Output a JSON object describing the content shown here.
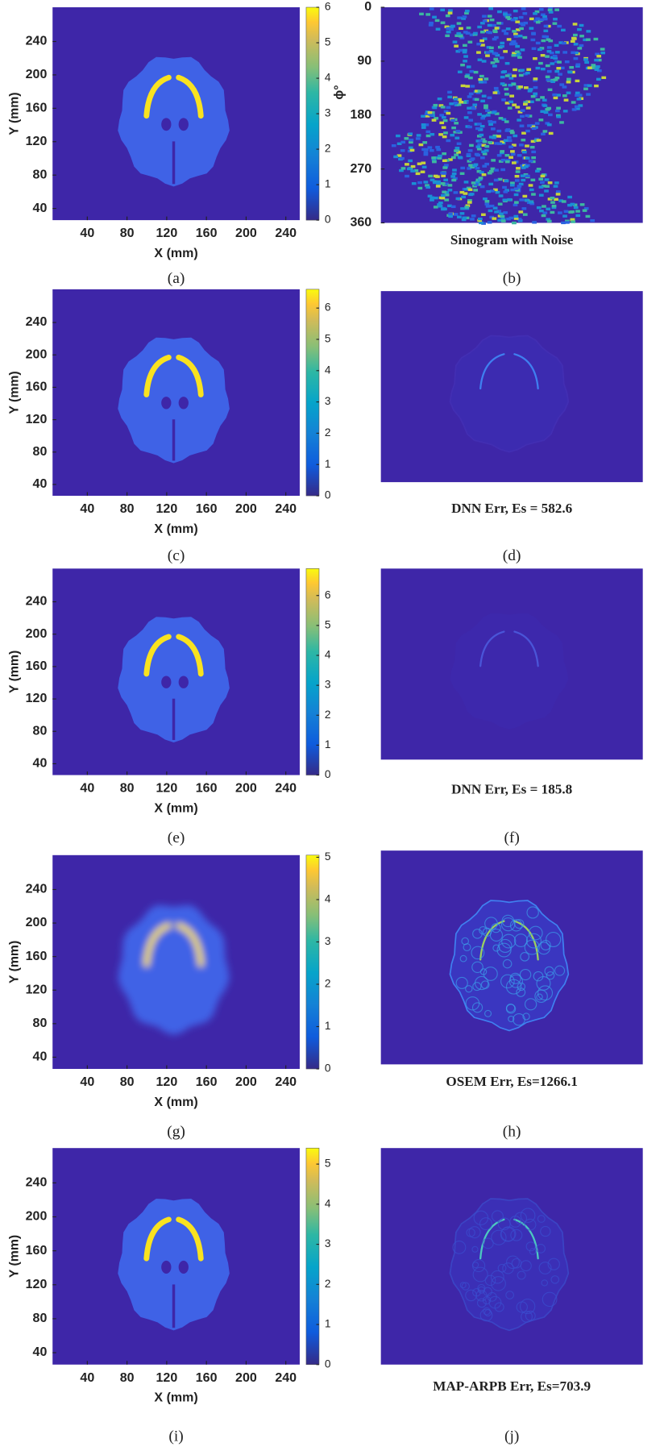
{
  "panels": [
    {
      "label": "(a)",
      "xlabel": "X (mm)",
      "ylabel": "Y (mm)",
      "xlim": [
        5,
        254
      ],
      "ylim": [
        26,
        281
      ],
      "xticks": [
        40,
        80,
        120,
        160,
        200,
        240
      ],
      "yticks": [
        40,
        80,
        120,
        160,
        200,
        240
      ],
      "clim": [
        0,
        6
      ],
      "cticks": [
        0,
        1,
        2,
        3,
        4,
        5,
        6
      ]
    },
    {
      "label": "(b)",
      "caption": "Sinogram with Noise",
      "ylabel": "ϕ°",
      "ylim": [
        0,
        360
      ],
      "yticks": [
        0,
        90,
        180,
        270,
        360
      ]
    },
    {
      "label": "(c)",
      "xlabel": "X (mm)",
      "ylabel": "Y (mm)",
      "xlim": [
        5,
        254
      ],
      "ylim": [
        26,
        281
      ],
      "xticks": [
        40,
        80,
        120,
        160,
        200,
        240
      ],
      "yticks": [
        40,
        80,
        120,
        160,
        200,
        240
      ],
      "clim": [
        0,
        6.6
      ],
      "cticks": [
        0,
        1,
        2,
        3,
        4,
        5,
        6
      ]
    },
    {
      "label": "(d)",
      "caption": "DNN Err, Es = 582.6"
    },
    {
      "label": "(e)",
      "xlabel": "X (mm)",
      "ylabel": "Y (mm)",
      "xlim": [
        5,
        254
      ],
      "ylim": [
        26,
        281
      ],
      "xticks": [
        40,
        80,
        120,
        160,
        200,
        240
      ],
      "yticks": [
        40,
        80,
        120,
        160,
        200,
        240
      ],
      "clim": [
        0,
        6.9
      ],
      "cticks": [
        0,
        1,
        2,
        3,
        4,
        5,
        6
      ]
    },
    {
      "label": "(f)",
      "caption": "DNN Err, Es = 185.8"
    },
    {
      "label": "(g)",
      "xlabel": "X (mm)",
      "ylabel": "Y (mm)",
      "xlim": [
        5,
        254
      ],
      "ylim": [
        26,
        281
      ],
      "xticks": [
        40,
        80,
        120,
        160,
        200,
        240
      ],
      "yticks": [
        40,
        80,
        120,
        160,
        200,
        240
      ],
      "clim": [
        0,
        5.05
      ],
      "cticks": [
        0,
        1,
        2,
        3,
        4,
        5
      ]
    },
    {
      "label": "(h)",
      "caption": "OSEM Err, Es=1266.1"
    },
    {
      "label": "(i)",
      "xlabel": "X (mm)",
      "ylabel": "Y (mm)",
      "xlim": [
        5,
        254
      ],
      "ylim": [
        26,
        281
      ],
      "xticks": [
        40,
        80,
        120,
        160,
        200,
        240
      ],
      "yticks": [
        40,
        80,
        120,
        160,
        200,
        240
      ],
      "clim": [
        0,
        5.4
      ],
      "cticks": [
        0,
        1,
        2,
        3,
        4,
        5
      ]
    },
    {
      "label": "(j)",
      "caption": "MAP-ARPB Err, Es=703.9"
    }
  ]
}
